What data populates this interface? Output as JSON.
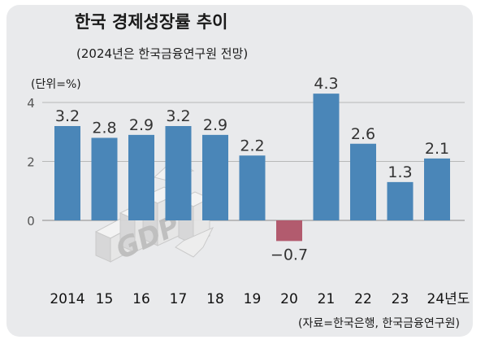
{
  "header": {
    "title": "한국 경제성장률 추이",
    "subtitle": "(2024년은 한국금융연구원 전망)",
    "unit": "(단위=%)"
  },
  "source": "(자료=한국은행, 한국금융연구원)",
  "illustration": {
    "label": "GDP"
  },
  "colors": {
    "positive": "#4a86b8",
    "negative": "#b25b6e",
    "background": "#e9eaec"
  },
  "chart_data": {
    "type": "bar",
    "categories": [
      "2014",
      "15",
      "16",
      "17",
      "18",
      "19",
      "20",
      "21",
      "22",
      "23",
      "24년도"
    ],
    "values": [
      3.2,
      2.8,
      2.9,
      3.2,
      2.9,
      2.2,
      -0.7,
      4.3,
      2.6,
      1.3,
      2.1
    ],
    "value_labels": [
      "3.2",
      "2.8",
      "2.9",
      "3.2",
      "2.9",
      "2.2",
      "−0.7",
      "4.3",
      "2.6",
      "1.3",
      "2.1"
    ],
    "yticks": [
      "4",
      "2",
      "0"
    ],
    "ytick_values": [
      4,
      2,
      0
    ],
    "ylim": [
      -2,
      4.8
    ],
    "grid": true,
    "legend": "none"
  }
}
